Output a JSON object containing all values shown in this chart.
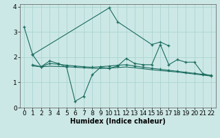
{
  "xlabel": "Humidex (Indice chaleur)",
  "background_color": "#cce8e6",
  "grid_color": "#aad4d0",
  "line_color": "#1a6b5e",
  "xlim": [
    -0.5,
    22.5
  ],
  "ylim": [
    0,
    4.1
  ],
  "yticks": [
    0,
    1,
    2,
    3,
    4
  ],
  "xticks": [
    0,
    1,
    2,
    3,
    4,
    5,
    6,
    7,
    8,
    9,
    10,
    11,
    12,
    13,
    14,
    15,
    16,
    17,
    18,
    19,
    20,
    21,
    22
  ],
  "series": [
    {
      "comment": "Big spike: starts at 0=3.2, dips to 1=2.1, then jumps to 10=3.95, 11=3.4, then 15=2.5, 16=2.6, 17=2.45",
      "x": [
        0,
        1,
        10,
        11,
        15,
        16,
        17
      ],
      "y": [
        3.2,
        2.1,
        3.95,
        3.4,
        2.5,
        2.6,
        2.45
      ],
      "marker": true
    },
    {
      "comment": "Wavy line with dip at 6: 1=2.1, 2=1.62, 3=1.85, 4=1.75, 5=1.6, 6=0.25, 7=0.45, 8=1.3, 9=1.6, 10=1.55, 11=1.65, 12=1.95, 13=1.75, 14=1.7, 15=1.7, 16=2.5, 17=1.7, 18=1.9, 19=1.8, 20=1.8, 21=1.35, 22=1.25",
      "x": [
        1,
        2,
        3,
        4,
        5,
        6,
        7,
        8,
        9,
        10,
        11,
        12,
        13,
        14,
        15,
        16,
        17,
        18,
        19,
        20,
        21,
        22
      ],
      "y": [
        2.1,
        1.62,
        1.85,
        1.75,
        1.6,
        0.25,
        0.45,
        1.3,
        1.6,
        1.55,
        1.65,
        1.95,
        1.75,
        1.7,
        1.7,
        2.5,
        1.7,
        1.9,
        1.8,
        1.8,
        1.35,
        1.25
      ],
      "marker": true
    },
    {
      "x": [
        1,
        2,
        3,
        4,
        5,
        6,
        7,
        8,
        9,
        10,
        11,
        12,
        13,
        14,
        15,
        16,
        17,
        18,
        19,
        20,
        21,
        22
      ],
      "y": [
        1.7,
        1.62,
        1.75,
        1.72,
        1.68,
        1.65,
        1.62,
        1.6,
        1.62,
        1.65,
        1.68,
        1.7,
        1.65,
        1.6,
        1.56,
        1.52,
        1.48,
        1.44,
        1.4,
        1.36,
        1.32,
        1.28
      ],
      "marker": true
    },
    {
      "x": [
        1,
        2,
        3,
        4,
        5,
        6,
        7,
        8,
        9,
        10,
        11,
        12,
        13,
        14,
        15,
        16,
        17,
        18,
        19,
        20,
        21,
        22
      ],
      "y": [
        1.65,
        1.62,
        1.64,
        1.63,
        1.62,
        1.6,
        1.58,
        1.56,
        1.55,
        1.57,
        1.59,
        1.61,
        1.58,
        1.54,
        1.5,
        1.47,
        1.44,
        1.41,
        1.37,
        1.33,
        1.29,
        1.25
      ],
      "marker": false
    }
  ]
}
